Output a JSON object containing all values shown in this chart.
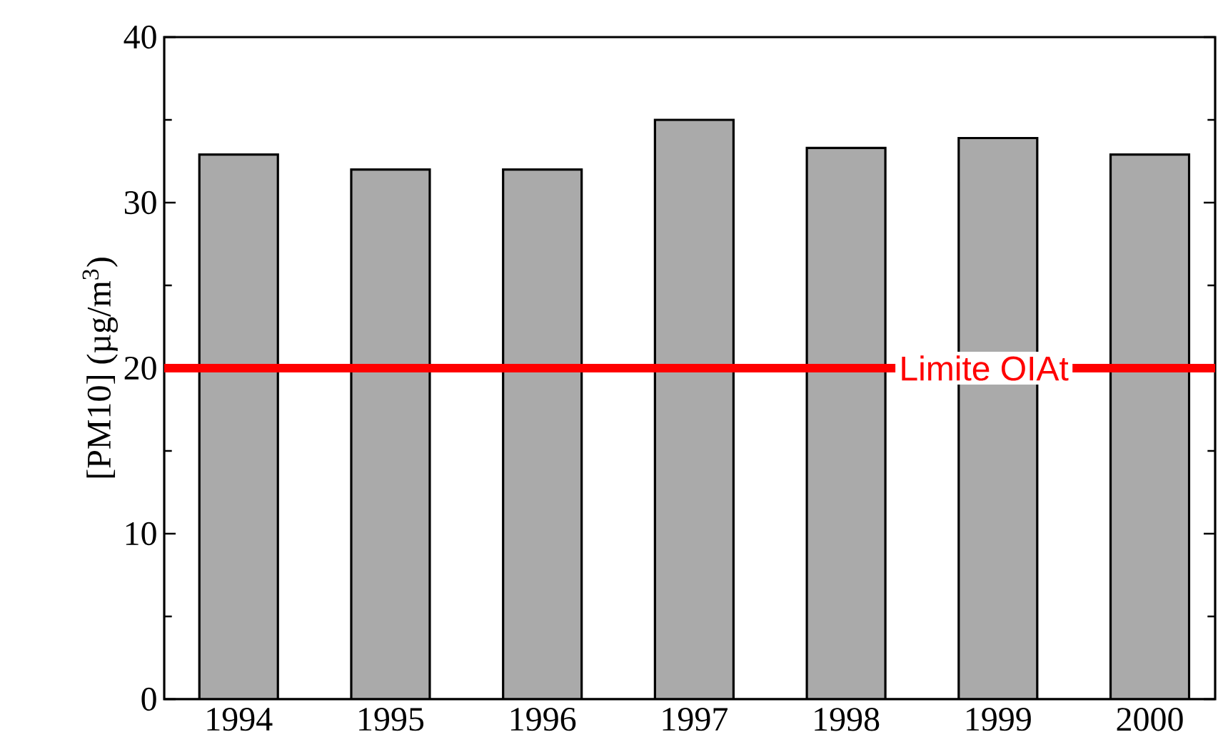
{
  "chart_data": {
    "type": "bar",
    "ylabel": "[PM10] (µg/m$^{3}$)",
    "categories": [
      "1994",
      "1995",
      "1996",
      "1997",
      "1998",
      "1999",
      "2000"
    ],
    "values": [
      32.9,
      32.0,
      32.0,
      35.0,
      33.3,
      33.9,
      32.9
    ],
    "color": "#aaaaaa",
    "ylim": [
      0,
      40
    ],
    "yticks": [
      0,
      10,
      20,
      30,
      40
    ],
    "ref_lines": [
      {
        "axis": "y",
        "value": 20,
        "label": "Limite OIAt",
        "color": "#ff0000"
      }
    ]
  }
}
